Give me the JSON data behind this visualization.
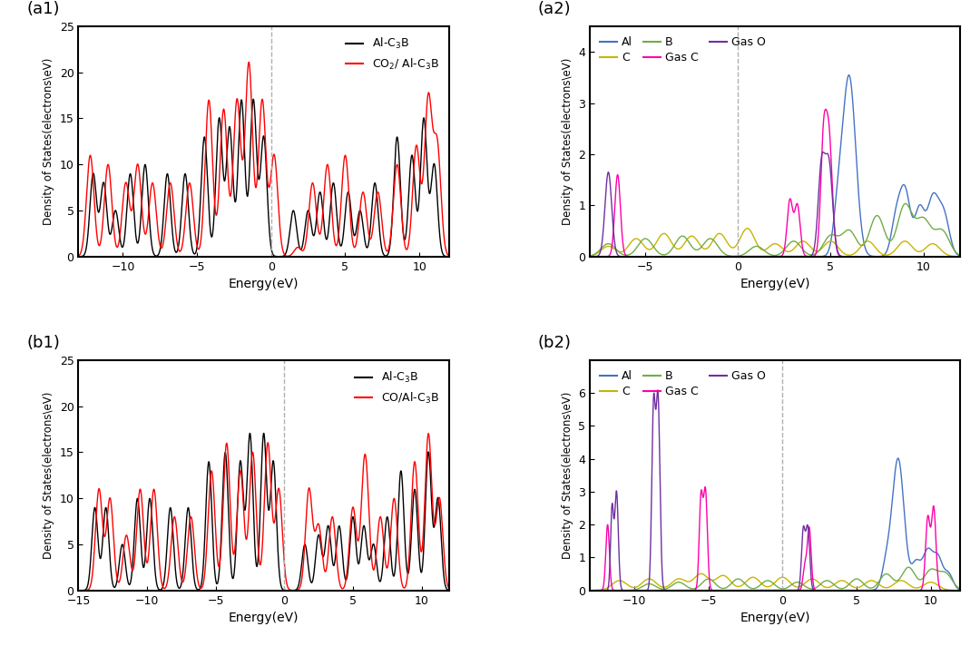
{
  "a1": {
    "label": "(a1)",
    "xlim": [
      -13,
      12
    ],
    "ylim": [
      0,
      25
    ],
    "xlabel": "Energy(eV)",
    "ylabel": "Density of States(electrons\\eV)",
    "legend1": "Al-C$_3$B",
    "legend2": "CO$_2$/ Al-C$_3$B",
    "color1": "#000000",
    "color2": "#ff0000"
  },
  "a2": {
    "label": "(a2)",
    "xlim": [
      -8,
      12
    ],
    "ylim": [
      0,
      4.5
    ],
    "xlabel": "Energy(eV)",
    "ylabel": "Density of States(electrons\\eV)",
    "legend_labels": [
      "Al",
      "C",
      "B",
      "Gas C",
      "Gas O"
    ],
    "legend_colors": [
      "#4472c4",
      "#c8b400",
      "#70ad47",
      "#ff00aa",
      "#7030a0"
    ]
  },
  "b1": {
    "label": "(b1)",
    "xlim": [
      -15,
      12
    ],
    "ylim": [
      0,
      25
    ],
    "xlabel": "Energy(eV)",
    "ylabel": "Density of States(electrons\\eV)",
    "legend1": "Al-C$_3$B",
    "legend2": "CO/Al-C$_3$B",
    "color1": "#000000",
    "color2": "#ff0000"
  },
  "b2": {
    "label": "(b2)",
    "xlim": [
      -13,
      12
    ],
    "ylim": [
      0,
      7
    ],
    "xlabel": "Energy(eV)",
    "ylabel": "Density of States(electrons\\eV)",
    "legend_labels": [
      "Al",
      "C",
      "B",
      "Gas C",
      "Gas O"
    ],
    "legend_colors": [
      "#4472c4",
      "#c8b400",
      "#70ad47",
      "#ff00aa",
      "#7030a0"
    ]
  }
}
